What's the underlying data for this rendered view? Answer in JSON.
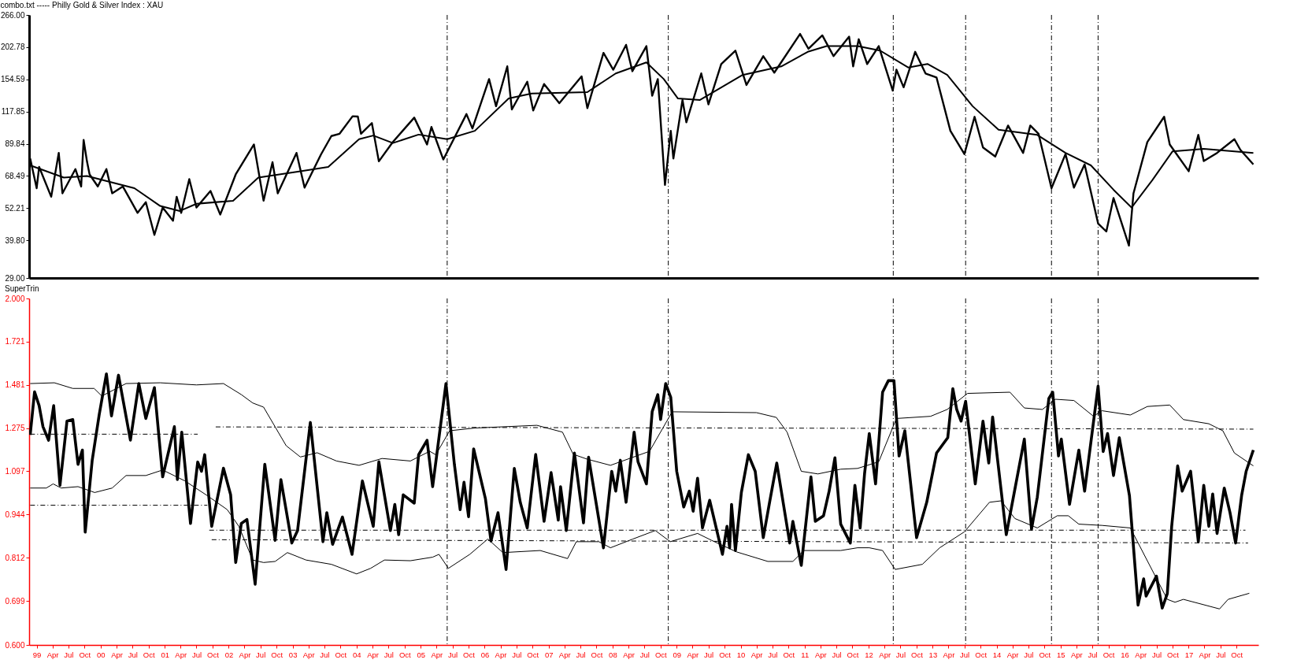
{
  "chart_data": [
    {
      "type": "line",
      "title": "combo.txt ----- Philly Gold & Silver Index : XAU",
      "log": true,
      "tick_labels": "y",
      "xlim": [
        "1998-11-19",
        "2018-02-03"
      ],
      "ylim": [
        29,
        266
      ],
      "yticks": [
        {
          "value": 266,
          "label": "266.00"
        },
        202.78,
        154.59,
        117.85,
        89.84,
        68.49,
        52.21,
        {
          "value": 39.8,
          "label": "39.80"
        },
        {
          "value": 29,
          "label": "29.00"
        }
      ],
      "series": [
        {
          "color": "#000000",
          "x": [
            "1998-11-25",
            "1999-01-01",
            "1999-01-15",
            "1999-03-25",
            "1999-05-07",
            "1999-05-28",
            "1999-08-10",
            "1999-09-12",
            "1999-09-26",
            "1999-10-15",
            "1999-10-30",
            "1999-12-16",
            "2000-02-03",
            "2000-03-07",
            "2000-05-07",
            "2000-07-30",
            "2000-09-15",
            "2000-11-03",
            "2000-12-20",
            "2001-02-17",
            "2001-03-10",
            "2001-04-05",
            "2001-05-21",
            "2001-07-01",
            "2001-09-19",
            "2001-11-14",
            "2002-02-10",
            "2002-05-25",
            "2002-07-19",
            "2002-09-08",
            "2002-10-08",
            "2003-01-23",
            "2003-03-10",
            "2003-06-12",
            "2003-08-10",
            "2003-09-26",
            "2003-12-09",
            "2004-01-08",
            "2004-01-26",
            "2004-03-28",
            "2004-05-07",
            "2004-07-26",
            "2004-11-25",
            "2005-02-06",
            "2005-03-03",
            "2005-05-10",
            "2005-09-19",
            "2005-10-23",
            "2006-01-26",
            "2006-03-07",
            "2006-05-10",
            "2006-06-05",
            "2006-09-01",
            "2006-10-05",
            "2006-12-06",
            "2007-03-03",
            "2007-07-08",
            "2007-08-10",
            "2007-11-10",
            "2008-01-05",
            "2008-03-18",
            "2008-04-23",
            "2008-07-12",
            "2008-08-14",
            "2008-09-15",
            "2008-10-26",
            "2008-11-28",
            "2008-12-13",
            "2009-02-03",
            "2009-02-25",
            "2009-05-21",
            "2009-07-01",
            "2009-09-12",
            "2009-12-02",
            "2010-02-03",
            "2010-05-10",
            "2010-07-12",
            "2010-12-06",
            "2011-01-23",
            "2011-04-12",
            "2011-06-15",
            "2011-09-12",
            "2011-10-05",
            "2011-11-06",
            "2011-12-24",
            "2012-02-28",
            "2012-05-18",
            "2012-06-08",
            "2012-07-19",
            "2012-09-23",
            "2012-11-21",
            "2013-01-23",
            "2013-04-12",
            "2013-07-01",
            "2013-08-28",
            "2013-10-15",
            "2013-12-24",
            "2014-03-07",
            "2014-06-01",
            "2014-07-12",
            "2014-08-28",
            "2014-11-10",
            "2015-01-29",
            "2015-03-18",
            "2015-05-18",
            "2015-08-03",
            "2015-09-19",
            "2015-10-30",
            "2016-01-26",
            "2016-02-21",
            "2016-05-10",
            "2016-08-14",
            "2016-09-15",
            "2017-01-01",
            "2017-02-25",
            "2017-03-28",
            "2017-06-12",
            "2017-09-19",
            "2017-10-23",
            "2018-01-05"
          ],
          "values": [
            79.4,
            61.8,
            73.9,
            57.5,
            83.2,
            59.2,
            72.6,
            62.7,
            92.8,
            77.5,
            69.4,
            62.7,
            72.6,
            59.2,
            62.7,
            50.2,
            54.9,
            41.7,
            52.5,
            47.0,
            57.5,
            50.2,
            66.7,
            52.5,
            60.4,
            49.5,
            69.4,
            89.3,
            55.6,
            76.9,
            59.2,
            83.2,
            62.1,
            82.2,
            95.9,
            97.8,
            113.3,
            113,
            97.8,
            107,
            77.5,
            91.2,
            112,
            89.3,
            103.5,
            78.7,
            115.4,
            102.2,
            155,
            123.3,
            172.5,
            120,
            151.6,
            119,
            148.7,
            126.5,
            158.6,
            121.3,
            193.3,
            167.7,
            206.8,
            165.6,
            204.6,
            134.7,
            155,
            63.5,
            100.2,
            79.4,
            130,
            107.6,
            162.5,
            125.2,
            175.9,
            197,
            147.4,
            188,
            163.6,
            226.7,
            200,
            224,
            188,
            221.5,
            172.5,
            216.8,
            176,
            204.6,
            140.6,
            167.7,
            144.6,
            195,
            162.5,
            157,
            100.2,
            82.4,
            112.8,
            87.1,
            80.7,
            104.8,
            83.2,
            104.8,
            97.8,
            61.8,
            82.4,
            62.1,
            75.5,
            45.9,
            42.9,
            56.9,
            38.1,
            59.2,
            91.2,
            112.8,
            89.3,
            71.3,
            96.8,
            77.7,
            83.2,
            93.4,
            85.4,
            75.5
          ]
        },
        {
          "color": "#000000",
          "x": [
            "1998-11-25",
            "1999-06-05",
            "1999-10-15",
            "2000-07-12",
            "2000-12-06",
            "2001-03-28",
            "2001-07-01",
            "2002-01-26",
            "2002-06-19",
            "2003-02-14",
            "2003-07-23",
            "2004-01-15",
            "2004-04-05",
            "2004-07-26",
            "2004-12-20",
            "2005-06-01",
            "2005-11-06",
            "2006-05-18",
            "2006-09-26",
            "2007-08-10",
            "2008-01-19",
            "2008-07-12",
            "2008-10-19",
            "2009-01-08",
            "2009-05-14",
            "2010-01-12",
            "2010-08-21",
            "2011-01-19",
            "2011-05-07",
            "2011-10-30",
            "2012-03-07",
            "2012-08-14",
            "2012-12-02",
            "2013-03-25",
            "2013-08-17",
            "2014-01-12",
            "2014-08-21",
            "2015-01-29",
            "2015-06-23",
            "2015-10-30",
            "2016-02-10",
            "2016-06-08",
            "2016-10-01",
            "2017-03-28",
            "2018-01-05"
          ],
          "values": [
            74.9,
            67.6,
            68.5,
            61.8,
            53.2,
            51.0,
            54.2,
            55.6,
            67.6,
            71.3,
            73.9,
            93.4,
            96.3,
            90.4,
            97.1,
            93.4,
            100.2,
            131.6,
            137.3,
            138.8,
            162.5,
            178.3,
            155,
            131.6,
            130,
            160.4,
            172.5,
            195,
            204.6,
            204.6,
            197,
            170.9,
            176,
            160.4,
            123.3,
            101.2,
            96.8,
            83.2,
            74.9,
            61.0,
            52.5,
            66.2,
            84.3,
            86.1,
            83.2
          ]
        }
      ],
      "ref_lines": [
        {
          "axis": "x",
          "value": "2005-06-01",
          "line_style": "dashed"
        },
        {
          "axis": "x",
          "value": "2008-11-14",
          "line_style": "dashed"
        },
        {
          "axis": "x",
          "value": "2012-05-21",
          "line_style": "dashed"
        },
        {
          "axis": "x",
          "value": "2013-07-08",
          "line_style": "dashed"
        },
        {
          "axis": "x",
          "value": "2014-11-10",
          "line_style": "dashed"
        },
        {
          "axis": "x",
          "value": "2015-08-03",
          "line_style": "dashed"
        }
      ]
    },
    {
      "type": "line",
      "title": "SuperTrin",
      "log": true,
      "xlim": [
        "1998-11-19",
        "2018-02-03"
      ],
      "xticks": [
        {
          "value": "1999-01-01",
          "label": "99"
        },
        {
          "value": "1999-04-01",
          "label": "Apr"
        },
        {
          "value": "1999-07-01",
          "label": "Jul"
        },
        {
          "value": "1999-10-01",
          "label": "Oct"
        },
        {
          "value": "2000-01-01",
          "label": "00"
        },
        {
          "value": "2000-04-01",
          "label": "Apr"
        },
        {
          "value": "2000-07-01",
          "label": "Jul"
        },
        {
          "value": "2000-10-01",
          "label": "Oct"
        },
        {
          "value": "2001-01-01",
          "label": "01"
        },
        {
          "value": "2001-04-01",
          "label": "Apr"
        },
        {
          "value": "2001-07-01",
          "label": "Jul"
        },
        {
          "value": "2001-10-01",
          "label": "Oct"
        },
        {
          "value": "2002-01-01",
          "label": "02"
        },
        {
          "value": "2002-04-01",
          "label": "Apr"
        },
        {
          "value": "2002-07-01",
          "label": "Jul"
        },
        {
          "value": "2002-10-01",
          "label": "Oct"
        },
        {
          "value": "2003-01-01",
          "label": "03"
        },
        {
          "value": "2003-04-01",
          "label": "Apr"
        },
        {
          "value": "2003-07-01",
          "label": "Jul"
        },
        {
          "value": "2003-10-01",
          "label": "Oct"
        },
        {
          "value": "2004-01-01",
          "label": "04"
        },
        {
          "value": "2004-04-01",
          "label": "Apr"
        },
        {
          "value": "2004-07-01",
          "label": "Jul"
        },
        {
          "value": "2004-10-01",
          "label": "Oct"
        },
        {
          "value": "2005-01-01",
          "label": "05"
        },
        {
          "value": "2005-04-01",
          "label": "Apr"
        },
        {
          "value": "2005-07-01",
          "label": "Jul"
        },
        {
          "value": "2005-10-01",
          "label": "Oct"
        },
        {
          "value": "2006-01-01",
          "label": "06"
        },
        {
          "value": "2006-04-01",
          "label": "Apr"
        },
        {
          "value": "2006-07-01",
          "label": "Jul"
        },
        {
          "value": "2006-10-01",
          "label": "Oct"
        },
        {
          "value": "2007-01-01",
          "label": "07"
        },
        {
          "value": "2007-04-01",
          "label": "Apr"
        },
        {
          "value": "2007-07-01",
          "label": "Jul"
        },
        {
          "value": "2007-10-01",
          "label": "Oct"
        },
        {
          "value": "2008-01-01",
          "label": "08"
        },
        {
          "value": "2008-04-01",
          "label": "Apr"
        },
        {
          "value": "2008-07-01",
          "label": "Jul"
        },
        {
          "value": "2008-10-01",
          "label": "Oct"
        },
        {
          "value": "2009-01-01",
          "label": "09"
        },
        {
          "value": "2009-04-01",
          "label": "Apr"
        },
        {
          "value": "2009-07-01",
          "label": "Jul"
        },
        {
          "value": "2009-10-01",
          "label": "Oct"
        },
        {
          "value": "2010-01-01",
          "label": "10"
        },
        {
          "value": "2010-04-01",
          "label": "Apr"
        },
        {
          "value": "2010-07-01",
          "label": "Jul"
        },
        {
          "value": "2010-10-01",
          "label": "Oct"
        },
        {
          "value": "2011-01-01",
          "label": "11"
        },
        {
          "value": "2011-04-01",
          "label": "Apr"
        },
        {
          "value": "2011-07-01",
          "label": "Jul"
        },
        {
          "value": "2011-10-01",
          "label": "Oct"
        },
        {
          "value": "2012-01-01",
          "label": "12"
        },
        {
          "value": "2012-04-01",
          "label": "Apr"
        },
        {
          "value": "2012-07-01",
          "label": "Jul"
        },
        {
          "value": "2012-10-01",
          "label": "Oct"
        },
        {
          "value": "2013-01-01",
          "label": "13"
        },
        {
          "value": "2013-04-01",
          "label": "Apr"
        },
        {
          "value": "2013-07-01",
          "label": "Jul"
        },
        {
          "value": "2013-10-01",
          "label": "Oct"
        },
        {
          "value": "2014-01-01",
          "label": "14"
        },
        {
          "value": "2014-04-01",
          "label": "Apr"
        },
        {
          "value": "2014-07-01",
          "label": "Jul"
        },
        {
          "value": "2014-10-01",
          "label": "Oct"
        },
        {
          "value": "2015-01-01",
          "label": "15"
        },
        {
          "value": "2015-04-01",
          "label": "Apr"
        },
        {
          "value": "2015-07-01",
          "label": "Jul"
        },
        {
          "value": "2015-10-01",
          "label": "Oct"
        },
        {
          "value": "2016-01-01",
          "label": "16"
        },
        {
          "value": "2016-04-01",
          "label": "Apr"
        },
        {
          "value": "2016-07-01",
          "label": "Jul"
        },
        {
          "value": "2016-10-01",
          "label": "Oct"
        },
        {
          "value": "2017-01-01",
          "label": "17"
        },
        {
          "value": "2017-04-01",
          "label": "Apr"
        },
        {
          "value": "2017-07-01",
          "label": "Jul"
        },
        {
          "value": "2017-10-01",
          "label": "Oct"
        }
      ],
      "ylim": [
        0.6,
        2
      ],
      "yticks": [
        {
          "value": 2,
          "label": "2.000"
        },
        1.721,
        1.481,
        1.275,
        1.097,
        0.944,
        0.812,
        0.699,
        {
          "value": 0.6,
          "label": "0.600"
        }
      ],
      "series": [
        {
          "color": "#000000",
          "x": [
            "1998-11-25",
            "1998-12-20",
            "1999-01-15",
            "1999-02-06",
            "1999-03-10",
            "1999-04-08",
            "1999-05-14",
            "1999-06-23",
            "1999-07-26",
            "1999-08-25",
            "1999-09-19",
            "1999-10-05",
            "1999-11-14",
            "1999-12-24",
            "2000-02-03",
            "2000-03-03",
            "2000-04-12",
            "2000-06-19",
            "2000-08-06",
            "2000-09-15",
            "2000-11-03",
            "2000-12-20",
            "2001-02-25",
            "2001-03-14",
            "2001-04-08",
            "2001-05-28",
            "2001-07-08",
            "2001-07-30",
            "2001-08-17",
            "2001-09-26",
            "2001-12-02",
            "2002-01-12",
            "2002-02-10",
            "2002-03-14",
            "2002-04-15",
            "2002-06-01",
            "2002-07-26",
            "2002-09-23",
            "2002-10-26",
            "2002-12-27",
            "2003-01-29",
            "2003-04-12",
            "2003-06-23",
            "2003-07-15",
            "2003-08-17",
            "2003-10-12",
            "2003-12-06",
            "2004-02-03",
            "2004-04-05",
            "2004-05-07",
            "2004-07-12",
            "2004-08-06",
            "2004-08-28",
            "2004-09-23",
            "2004-11-25",
            "2004-12-20",
            "2005-02-06",
            "2005-03-10",
            "2005-05-25",
            "2005-07-12",
            "2005-08-14",
            "2005-09-05",
            "2005-10-01",
            "2005-10-30",
            "2006-01-05",
            "2006-02-06",
            "2006-03-18",
            "2006-05-03",
            "2006-06-19",
            "2006-07-23",
            "2006-09-01",
            "2006-10-19",
            "2006-12-06",
            "2007-01-15",
            "2007-02-25",
            "2007-03-10",
            "2007-04-12",
            "2007-05-28",
            "2007-07-19",
            "2007-08-17",
            "2007-11-10",
            "2007-12-27",
            "2008-01-19",
            "2008-02-14",
            "2008-03-18",
            "2008-05-03",
            "2008-05-25",
            "2008-07-12",
            "2008-08-14",
            "2008-09-15",
            "2008-10-01",
            "2008-10-30",
            "2008-11-28",
            "2009-01-01",
            "2009-02-10",
            "2009-03-14",
            "2009-04-05",
            "2009-04-30",
            "2009-05-28",
            "2009-07-08",
            "2009-09-19",
            "2009-10-15",
            "2009-10-30",
            "2009-11-10",
            "2009-12-02",
            "2010-01-05",
            "2010-02-14",
            "2010-03-25",
            "2010-05-10",
            "2010-06-15",
            "2010-07-26",
            "2010-10-08",
            "2010-10-26",
            "2010-12-13",
            "2011-02-06",
            "2011-03-03",
            "2011-04-19",
            "2011-05-21",
            "2011-06-23",
            "2011-07-26",
            "2011-09-19",
            "2011-10-15",
            "2011-11-14",
            "2011-12-09",
            "2012-01-05",
            "2012-02-10",
            "2012-03-21",
            "2012-04-23",
            "2012-05-25",
            "2012-06-23",
            "2012-07-26",
            "2012-10-01",
            "2012-11-28",
            "2013-01-23",
            "2013-03-28",
            "2013-04-26",
            "2013-05-18",
            "2013-06-12",
            "2013-07-08",
            "2013-09-01",
            "2013-10-15",
            "2013-11-17",
            "2013-12-09",
            "2014-02-25",
            "2014-04-05",
            "2014-06-08",
            "2014-07-19",
            "2014-08-21",
            "2014-10-26",
            "2014-11-17",
            "2014-12-20",
            "2015-01-05",
            "2015-02-21",
            "2015-04-15",
            "2015-05-18",
            "2015-08-03",
            "2015-09-01",
            "2015-09-26",
            "2015-10-30",
            "2015-12-02",
            "2016-01-29",
            "2016-03-18",
            "2016-04-19",
            "2016-05-03",
            "2016-07-01",
            "2016-08-03",
            "2016-09-01",
            "2016-09-26",
            "2016-10-30",
            "2016-11-25",
            "2017-01-12",
            "2017-02-25",
            "2017-03-28",
            "2017-04-26",
            "2017-05-18",
            "2017-06-12",
            "2017-07-23",
            "2017-08-25",
            "2017-09-26",
            "2017-10-30",
            "2017-11-25",
            "2018-01-05"
          ],
          "values": [
            1.245,
            1.446,
            1.378,
            1.281,
            1.222,
            1.378,
            1.045,
            1.306,
            1.313,
            1.124,
            1.181,
            0.888,
            1.14,
            1.336,
            1.539,
            1.33,
            1.532,
            1.222,
            1.488,
            1.318,
            1.467,
            1.076,
            1.281,
            1.066,
            1.257,
            0.915,
            1.133,
            1.097,
            1.162,
            0.906,
            1.109,
            1.011,
            0.799,
            0.915,
            0.928,
            0.741,
            1.124,
            0.863,
            1.066,
            0.855,
            0.893,
            1.3,
            0.859,
            0.95,
            0.851,
            0.936,
            0.822,
            1.061,
            0.906,
            1.134,
            0.893,
            0.978,
            0.88,
            1.011,
            0.982,
            1.162,
            1.222,
            1.04,
            1.488,
            1.124,
            0.96,
            1.056,
            0.937,
            1.186,
            0.998,
            0.861,
            0.95,
            0.78,
            1.108,
            0.985,
            0.901,
            1.163,
            0.922,
            1.092,
            0.926,
            1.04,
            0.893,
            1.169,
            0.917,
            1.152,
            0.841,
            1.097,
            1.024,
            1.14,
            0.985,
            1.257,
            1.134,
            1.05,
            1.35,
            1.432,
            1.313,
            1.488,
            1.418,
            1.097,
            0.969,
            1.024,
            0.955,
            1.071,
            0.901,
            0.992,
            0.822,
            0.906,
            0.841,
            0.978,
            0.833,
            1.019,
            1.162,
            1.097,
            0.871,
            0.985,
            1.129,
            0.855,
            0.922,
            0.791,
            1.076,
            0.922,
            0.94,
            1.024,
            1.15,
            0.913,
            0.855,
            1.045,
            0.901,
            1.087,
            1.251,
            1.05,
            1.444,
            1.503,
            1.503,
            1.157,
            1.263,
            0.871,
            0.985,
            1.169,
            1.233,
            1.462,
            1.36,
            1.306,
            1.399,
            1.05,
            1.306,
            1.129,
            1.325,
            0.88,
            0.998,
            1.227,
            0.897,
            1.003,
            1.413,
            1.444,
            1.157,
            1.227,
            0.978,
            1.181,
            1.024,
            1.475,
            1.175,
            1.251,
            1.081,
            1.233,
            1.008,
            0.689,
            0.755,
            0.711,
            0.762,
            0.682,
            0.717,
            0.906,
            1.118,
            1.024,
            1.097,
            0.859,
            1.045,
            0.906,
            1.014,
            0.884,
            1.035,
            0.95,
            0.855,
            1.008,
            1.097,
            1.181
          ]
        },
        {
          "color": "#000000",
          "x": [
            "1998-11-25",
            "1999-04-12",
            "1999-07-26",
            "1999-11-25",
            "2000-01-08",
            "2000-05-25",
            "2000-12-06",
            "2001-07-01",
            "2001-12-02",
            "2002-03-14",
            "2002-05-18",
            "2002-07-19",
            "2002-11-25",
            "2003-02-14",
            "2003-05-21",
            "2003-09-08",
            "2004-01-15",
            "2004-05-25",
            "2004-11-03",
            "2005-02-21",
            "2005-03-28",
            "2005-06-15",
            "2005-11-06",
            "2006-10-26",
            "2007-03-21",
            "2007-05-21",
            "2007-08-10",
            "2007-12-20",
            "2008-07-30",
            "2008-12-06",
            "2010-04-01",
            "2010-07-23",
            "2010-09-23",
            "2010-12-13",
            "2011-03-18",
            "2011-07-26",
            "2011-10-30",
            "2012-02-28",
            "2012-06-08",
            "2012-12-20",
            "2013-03-25",
            "2013-07-19",
            "2014-03-18",
            "2014-06-08",
            "2014-09-19",
            "2014-12-02",
            "2015-03-18",
            "2015-07-08",
            "2015-08-25",
            "2016-02-03",
            "2016-05-10",
            "2016-09-15",
            "2016-12-02",
            "2017-04-26",
            "2017-07-15",
            "2017-09-19",
            "2018-01-05"
          ],
          "values": [
            1.488,
            1.492,
            1.463,
            1.463,
            1.425,
            1.488,
            1.492,
            1.481,
            1.488,
            1.432,
            1.391,
            1.371,
            1.199,
            1.153,
            1.17,
            1.137,
            1.12,
            1.147,
            1.137,
            1.176,
            1.162,
            1.263,
            1.275,
            1.287,
            1.257,
            1.164,
            1.144,
            1.12,
            1.176,
            1.349,
            1.345,
            1.323,
            1.257,
            1.097,
            1.087,
            1.105,
            1.108,
            1.134,
            1.318,
            1.328,
            1.36,
            1.438,
            1.444,
            1.367,
            1.36,
            1.409,
            1.403,
            1.328,
            1.354,
            1.334,
            1.374,
            1.381,
            1.313,
            1.294,
            1.263,
            1.169,
            1.118
          ]
        },
        {
          "color": "#000000",
          "x": [
            "1998-11-25",
            "1999-02-25",
            "1999-04-05",
            "1999-05-21",
            "1999-08-25",
            "1999-11-28",
            "2000-03-07",
            "2000-05-25",
            "2000-09-15",
            "2000-12-20",
            "2001-04-26",
            "2001-09-01",
            "2001-12-24",
            "2002-02-28",
            "2002-05-18",
            "2002-07-19",
            "2002-09-23",
            "2002-12-02",
            "2003-03-18",
            "2003-08-10",
            "2004-01-01",
            "2004-03-21",
            "2004-06-08",
            "2004-11-03",
            "2005-03-10",
            "2005-04-15",
            "2005-06-08",
            "2005-10-08",
            "2006-01-19",
            "2006-04-15",
            "2006-11-14",
            "2007-04-19",
            "2007-06-08",
            "2007-10-15",
            "2007-12-20",
            "2008-04-26",
            "2008-09-01",
            "2008-11-25",
            "2009-04-30",
            "2009-07-19",
            "2009-12-09",
            "2010-06-05",
            "2010-10-26",
            "2010-12-27",
            "2011-07-26",
            "2011-10-30",
            "2012-01-05",
            "2012-03-21",
            "2012-06-01",
            "2012-11-03",
            "2013-02-10",
            "2013-07-01",
            "2013-11-21",
            "2014-01-26",
            "2014-04-15",
            "2014-08-21",
            "2014-12-13",
            "2015-02-14",
            "2015-04-15",
            "2015-08-25",
            "2016-02-03",
            "2016-09-01",
            "2016-10-15",
            "2016-12-02",
            "2017-06-26",
            "2017-08-14",
            "2017-12-13"
          ],
          "values": [
            1.035,
            1.035,
            1.05,
            1.035,
            1.04,
            1.019,
            1.035,
            1.081,
            1.081,
            1.102,
            1.061,
            1.008,
            0.96,
            0.906,
            0.806,
            0.799,
            0.802,
            0.827,
            0.806,
            0.794,
            0.768,
            0.783,
            0.806,
            0.804,
            0.814,
            0.822,
            0.783,
            0.822,
            0.867,
            0.827,
            0.833,
            0.81,
            0.859,
            0.859,
            0.841,
            0.867,
            0.893,
            0.859,
            0.884,
            0.863,
            0.829,
            0.802,
            0.802,
            0.833,
            0.833,
            0.841,
            0.841,
            0.833,
            0.78,
            0.794,
            0.841,
            0.889,
            0.985,
            0.99,
            0.931,
            0.901,
            0.94,
            0.94,
            0.913,
            0.909,
            0.901,
            0.703,
            0.696,
            0.703,
            0.68,
            0.703,
            0.718
          ]
        },
        {
          "color": "#000000",
          "line_style": "dashed",
          "x": [
            "1998-11-25",
            "2001-07-08"
          ],
          "values": [
            1.248,
            1.248
          ]
        },
        {
          "color": "#000000",
          "line_style": "dashed",
          "x": [
            "1998-11-25",
            "2001-09-01"
          ],
          "values": [
            0.975,
            0.975
          ]
        },
        {
          "color": "#000000",
          "line_style": "dashed",
          "x": [
            "2001-10-19",
            "2018-01-05"
          ],
          "values": [
            1.28,
            1.27
          ]
        },
        {
          "color": "#000000",
          "line_style": "dashed",
          "x": [
            "2001-09-12",
            "2017-11-21"
          ],
          "values": [
            0.894,
            0.894
          ]
        },
        {
          "color": "#000000",
          "line_style": "dashed",
          "x": [
            "2001-09-26",
            "2017-12-06"
          ],
          "values": [
            0.865,
            0.855
          ]
        }
      ],
      "ref_lines": [
        {
          "axis": "x",
          "value": "2005-06-01",
          "line_style": "dashed"
        },
        {
          "axis": "x",
          "value": "2008-11-14",
          "line_style": "dashed"
        },
        {
          "axis": "x",
          "value": "2012-05-21",
          "line_style": "dashed"
        },
        {
          "axis": "x",
          "value": "2013-07-08",
          "line_style": "dashed"
        },
        {
          "axis": "x",
          "value": "2014-11-10",
          "line_style": "dashed"
        },
        {
          "axis": "x",
          "value": "2015-08-03",
          "line_style": "dashed"
        }
      ]
    }
  ]
}
